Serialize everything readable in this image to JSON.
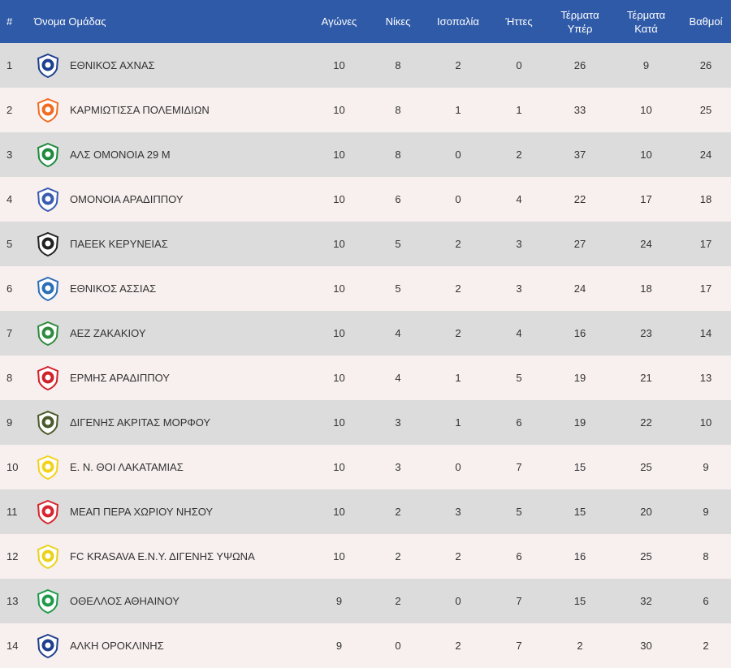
{
  "headers": {
    "num": "#",
    "team": "Όνομα Ομάδας",
    "played": "Αγώνες",
    "wins": "Νίκες",
    "draws": "Ισοπαλία",
    "losses": "Ήττες",
    "goals_for_line1": "Τέρματα",
    "goals_for_line2": "Υπέρ",
    "goals_against_line1": "Τέρματα",
    "goals_against_line2": "Κατά",
    "points": "Βαθμοί"
  },
  "rows": [
    {
      "pos": "1",
      "team": "ΕΘΝΙΚΟΣ ΑΧΝΑΣ",
      "played": "10",
      "wins": "8",
      "draws": "2",
      "losses": "0",
      "gf": "26",
      "ga": "9",
      "pts": "26",
      "logo_icon": "ethnikos-achnas-crest-icon",
      "logo_color": "#1e3f8f"
    },
    {
      "pos": "2",
      "team": "ΚΑΡΜΙΩΤΙΣΣΑ ΠΟΛΕΜΙΔΙΩΝ",
      "played": "10",
      "wins": "8",
      "draws": "1",
      "losses": "1",
      "gf": "33",
      "ga": "10",
      "pts": "25",
      "logo_icon": "karmiotissa-crest-icon",
      "logo_color": "#f26b21"
    },
    {
      "pos": "3",
      "team": "ΑΛΣ ΟΜΟΝΟΙΑ 29 Μ",
      "played": "10",
      "wins": "8",
      "draws": "0",
      "losses": "2",
      "gf": "37",
      "ga": "10",
      "pts": "24",
      "logo_icon": "omonoia-29m-crest-icon",
      "logo_color": "#1e8a3c"
    },
    {
      "pos": "4",
      "team": "ΟΜΟΝΟΙΑ ΑΡΑΔΙΠΠΟΥ",
      "played": "10",
      "wins": "6",
      "draws": "0",
      "losses": "4",
      "gf": "22",
      "ga": "17",
      "pts": "18",
      "logo_icon": "omonoia-aradippou-crest-icon",
      "logo_color": "#3a5bb0"
    },
    {
      "pos": "5",
      "team": "ΠΑΕΕΚ ΚΕΡΥΝΕΙΑΣ",
      "played": "10",
      "wins": "5",
      "draws": "2",
      "losses": "3",
      "gf": "27",
      "ga": "24",
      "pts": "17",
      "logo_icon": "paeek-eagle-crest-icon",
      "logo_color": "#222222"
    },
    {
      "pos": "6",
      "team": "ΕΘΝΙΚΟΣ ΑΣΣΙΑΣ",
      "played": "10",
      "wins": "5",
      "draws": "2",
      "losses": "3",
      "gf": "24",
      "ga": "18",
      "pts": "17",
      "logo_icon": "ethnikos-assias-crest-icon",
      "logo_color": "#2a6fb8"
    },
    {
      "pos": "7",
      "team": "ΑΕΖ ΖΑΚΑΚΙΟΥ",
      "played": "10",
      "wins": "4",
      "draws": "2",
      "losses": "4",
      "gf": "16",
      "ga": "23",
      "pts": "14",
      "logo_icon": "aez-zakakiou-crest-icon",
      "logo_color": "#2e8b3e"
    },
    {
      "pos": "8",
      "team": "ΕΡΜΗΣ ΑΡΑΔΙΠΠΟΥ",
      "played": "10",
      "wins": "4",
      "draws": "1",
      "losses": "5",
      "gf": "19",
      "ga": "21",
      "pts": "13",
      "logo_icon": "ermis-aradippou-crest-icon",
      "logo_color": "#d0202a"
    },
    {
      "pos": "9",
      "team": "ΔΙΓΕΝΗΣ ΑΚΡΙΤΑΣ ΜΟΡΦΟΥ",
      "played": "10",
      "wins": "3",
      "draws": "1",
      "losses": "6",
      "gf": "19",
      "ga": "22",
      "pts": "10",
      "logo_icon": "digenis-morfou-crest-icon",
      "logo_color": "#4a5a2a"
    },
    {
      "pos": "10",
      "team": "Ε. Ν. ΘΟΙ ΛΑΚΑΤΑΜΙΑΣ",
      "played": "10",
      "wins": "3",
      "draws": "0",
      "losses": "7",
      "gf": "15",
      "ga": "25",
      "pts": "9",
      "logo_icon": "thoi-lakatamias-crest-icon",
      "logo_color": "#f2d21b"
    },
    {
      "pos": "11",
      "team": "ΜΕΑΠ ΠΕΡΑ ΧΩΡΙΟΥ ΝΗΣΟΥ",
      "played": "10",
      "wins": "2",
      "draws": "3",
      "losses": "5",
      "gf": "15",
      "ga": "20",
      "pts": "9",
      "logo_icon": "meap-crest-icon",
      "logo_color": "#d8242c"
    },
    {
      "pos": "12",
      "team": "FC KRASAVA Ε.Ν.Υ. ΔΙΓΕΝΗΣ ΥΨΩΝΑ",
      "played": "10",
      "wins": "2",
      "draws": "2",
      "losses": "6",
      "gf": "16",
      "ga": "25",
      "pts": "8",
      "logo_icon": "krasava-crest-icon",
      "logo_color": "#e8d31a"
    },
    {
      "pos": "13",
      "team": "ΟΘΕΛΛΟΣ ΑΘΗΑΙΝΟΥ",
      "played": "9",
      "wins": "2",
      "draws": "0",
      "losses": "7",
      "gf": "15",
      "ga": "32",
      "pts": "6",
      "logo_icon": "othellos-crest-icon",
      "logo_color": "#1e9a4a"
    },
    {
      "pos": "14",
      "team": "ΑΛΚΗ ΟΡΟΚΛΙΝΗΣ",
      "played": "9",
      "wins": "0",
      "draws": "2",
      "losses": "7",
      "gf": "2",
      "ga": "30",
      "pts": "2",
      "logo_icon": "alki-oroklinis-crest-icon",
      "logo_color": "#1f3f8c"
    }
  ]
}
